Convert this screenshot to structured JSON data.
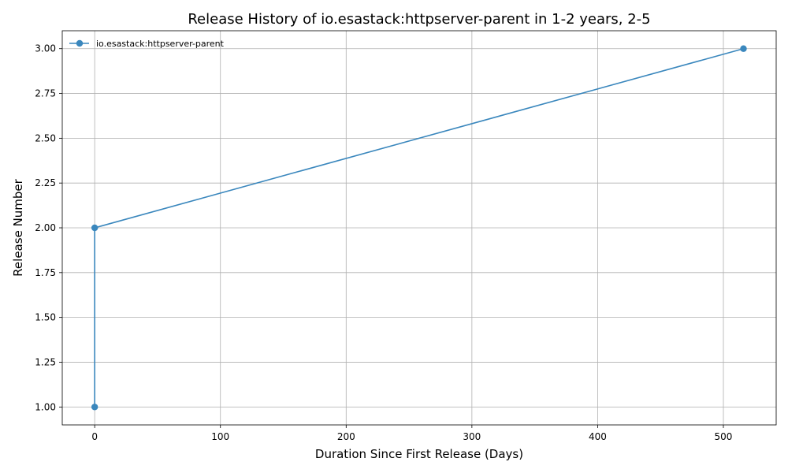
{
  "chart_data": {
    "type": "line",
    "title": "Release History of io.esastack:httpserver-parent in 1-2 years, 2-5",
    "xlabel": "Duration Since First Release (Days)",
    "ylabel": "Release Number",
    "xlim": [
      -25.8,
      542.0
    ],
    "ylim": [
      0.9,
      3.1
    ],
    "xticks": [
      0,
      100,
      200,
      300,
      400,
      500
    ],
    "xtick_labels": [
      "0",
      "100",
      "200",
      "300",
      "400",
      "500"
    ],
    "yticks": [
      1.0,
      1.25,
      1.5,
      1.75,
      2.0,
      2.25,
      2.5,
      2.75,
      3.0
    ],
    "ytick_labels": [
      "1.00",
      "1.25",
      "1.50",
      "1.75",
      "2.00",
      "2.25",
      "2.50",
      "2.75",
      "3.00"
    ],
    "grid": true,
    "legend_position": "upper-left",
    "series": [
      {
        "name": "io.esastack:httpserver-parent",
        "color": "#3a87bd",
        "marker": "circle",
        "x": [
          0,
          0,
          516
        ],
        "y": [
          1,
          2,
          3
        ]
      }
    ]
  }
}
